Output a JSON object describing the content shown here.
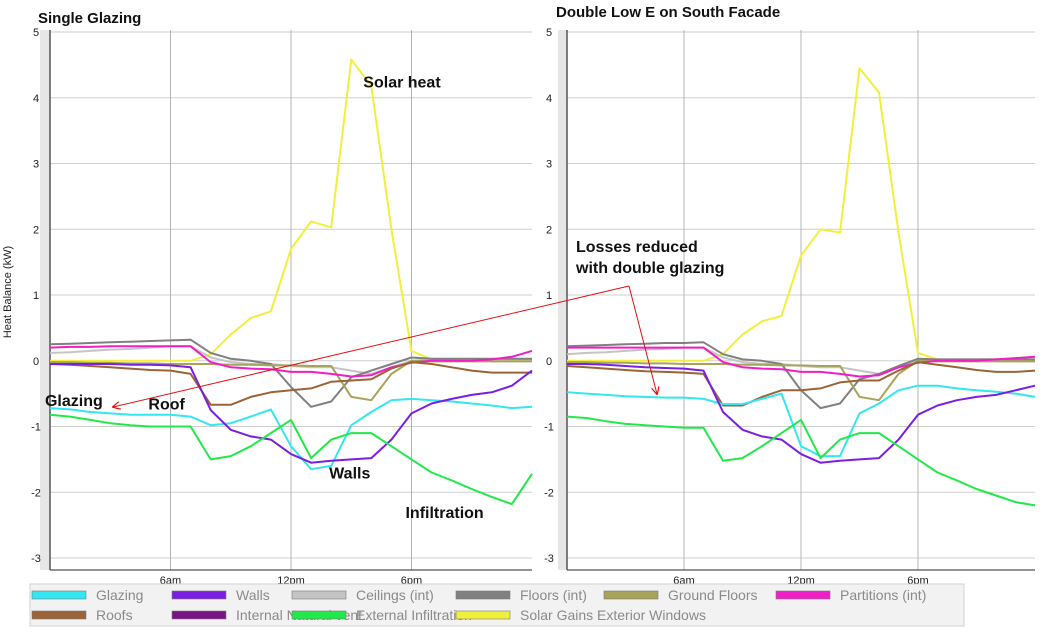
{
  "figure": {
    "ylabel": "Heat Balance (kW)",
    "callout": [
      "Losses reduced",
      "with double glazing"
    ]
  },
  "legend": [
    {
      "label": "Glazing",
      "color": "#33e6f0"
    },
    {
      "label": "Walls",
      "color": "#7a1fe0"
    },
    {
      "label": "Ceilings (int)",
      "color": "#c4c4c4"
    },
    {
      "label": "Floors (int)",
      "color": "#808080"
    },
    {
      "label": "Ground Floors",
      "color": "#a8a35a"
    },
    {
      "label": "Partitions (int)",
      "color": "#f01ec8"
    },
    {
      "label": "Roofs",
      "color": "#9a6438"
    },
    {
      "label": "Internal Natural vent.",
      "color": "#7a1486"
    },
    {
      "label": "External Infiltration",
      "color": "#22e84a"
    },
    {
      "label": "Solar Gains Exterior Windows",
      "color": "#f2ef3c"
    }
  ],
  "chart_data": [
    {
      "type": "line",
      "title": "Single Glazing",
      "ylabel": "Heat Balance (kW)",
      "ylim": [
        -3,
        5
      ],
      "yticks": [
        5,
        4,
        3,
        2,
        1,
        0,
        -1,
        -2,
        -3
      ],
      "xlim": [
        0,
        24
      ],
      "xticks": [
        {
          "value": 6,
          "label": "6am"
        },
        {
          "value": 12,
          "label": "12pm"
        },
        {
          "value": 18,
          "label": "6pm"
        }
      ],
      "x": [
        0,
        1,
        2,
        3,
        4,
        5,
        6,
        7,
        8,
        9,
        10,
        11,
        12,
        13,
        14,
        15,
        16,
        17,
        18,
        19,
        20,
        21,
        22,
        23,
        24
      ],
      "annotations": [
        {
          "text": "Solar heat",
          "x": 15.6,
          "y": 4.25
        },
        {
          "text": "Glazing",
          "x": -0.25,
          "y": -0.6
        },
        {
          "text": "Roof",
          "x": 4.9,
          "y": -0.65
        },
        {
          "text": "Walls",
          "x": 13.9,
          "y": -1.7
        },
        {
          "text": "Infiltration",
          "x": 17.7,
          "y": -2.3
        }
      ],
      "series": [
        {
          "name": "Solar Gains Exterior Windows",
          "values": [
            0.0,
            0.0,
            0.0,
            0.0,
            0.0,
            0.0,
            0.0,
            0.0,
            0.1,
            0.4,
            0.65,
            0.75,
            1.7,
            2.12,
            2.03,
            4.58,
            4.18,
            2.0,
            0.15,
            0.02,
            0.0,
            0.0,
            0.0,
            0.0,
            0.0
          ]
        },
        {
          "name": "Ceilings (int)",
          "values": [
            0.12,
            0.13,
            0.15,
            0.17,
            0.18,
            0.2,
            0.22,
            0.22,
            0.05,
            -0.02,
            -0.05,
            -0.05,
            -0.08,
            -0.1,
            -0.1,
            -0.15,
            -0.2,
            -0.1,
            0.0,
            0.02,
            0.02,
            0.02,
            0.02,
            0.02,
            0.02
          ]
        },
        {
          "name": "Floors (int)",
          "values": [
            0.25,
            0.26,
            0.27,
            0.28,
            0.29,
            0.3,
            0.31,
            0.32,
            0.12,
            0.03,
            0.0,
            -0.05,
            -0.4,
            -0.7,
            -0.62,
            -0.25,
            -0.15,
            -0.05,
            0.05,
            0.03,
            0.03,
            0.03,
            0.03,
            0.03,
            0.03
          ]
        },
        {
          "name": "Ground Floors",
          "values": [
            -0.02,
            -0.02,
            -0.03,
            -0.03,
            -0.04,
            -0.04,
            -0.05,
            -0.05,
            -0.05,
            -0.06,
            -0.06,
            -0.07,
            -0.07,
            -0.08,
            -0.08,
            -0.55,
            -0.6,
            -0.2,
            0.0,
            -0.01,
            -0.01,
            -0.01,
            -0.01,
            -0.01,
            -0.01
          ]
        },
        {
          "name": "Partitions (int)",
          "values": [
            0.2,
            0.21,
            0.21,
            0.22,
            0.22,
            0.22,
            0.22,
            0.22,
            -0.02,
            -0.1,
            -0.12,
            -0.13,
            -0.17,
            -0.17,
            -0.2,
            -0.24,
            -0.22,
            -0.1,
            -0.03,
            0.0,
            0.0,
            0.0,
            0.02,
            0.06,
            0.15
          ]
        },
        {
          "name": "Roofs",
          "values": [
            -0.05,
            -0.06,
            -0.08,
            -0.1,
            -0.12,
            -0.14,
            -0.15,
            -0.2,
            -0.67,
            -0.67,
            -0.55,
            -0.48,
            -0.45,
            -0.42,
            -0.32,
            -0.3,
            -0.28,
            -0.12,
            -0.02,
            -0.05,
            -0.1,
            -0.15,
            -0.18,
            -0.18,
            -0.18
          ]
        },
        {
          "name": "Glazing",
          "values": [
            -0.72,
            -0.74,
            -0.78,
            -0.8,
            -0.82,
            -0.82,
            -0.82,
            -0.85,
            -0.98,
            -0.95,
            -0.85,
            -0.74,
            -1.3,
            -1.65,
            -1.6,
            -0.98,
            -0.78,
            -0.6,
            -0.58,
            -0.6,
            -0.62,
            -0.65,
            -0.68,
            -0.72,
            -0.7
          ]
        },
        {
          "name": "Walls",
          "values": [
            -0.05,
            -0.05,
            -0.05,
            -0.05,
            -0.06,
            -0.06,
            -0.07,
            -0.1,
            -0.75,
            -1.05,
            -1.15,
            -1.2,
            -1.42,
            -1.55,
            -1.52,
            -1.5,
            -1.48,
            -1.2,
            -0.8,
            -0.65,
            -0.58,
            -0.52,
            -0.48,
            -0.38,
            -0.15
          ]
        },
        {
          "name": "External Infiltration",
          "values": [
            -0.82,
            -0.85,
            -0.9,
            -0.95,
            -0.98,
            -1.0,
            -1.0,
            -1.0,
            -1.5,
            -1.45,
            -1.3,
            -1.1,
            -0.9,
            -1.48,
            -1.2,
            -1.1,
            -1.1,
            -1.3,
            -1.5,
            -1.7,
            -1.82,
            -1.95,
            -2.07,
            -2.18,
            -1.72
          ]
        }
      ]
    },
    {
      "type": "line",
      "title": "Double Low E on South Facade",
      "ylabel": "",
      "ylim": [
        -3,
        5
      ],
      "yticks": [
        5,
        4,
        3,
        2,
        1,
        0,
        -1,
        -2,
        -3
      ],
      "xlim": [
        0,
        24
      ],
      "xticks": [
        {
          "value": 6,
          "label": "6am"
        },
        {
          "value": 12,
          "label": "12pm"
        },
        {
          "value": 18,
          "label": "6pm"
        }
      ],
      "x": [
        0,
        1,
        2,
        3,
        4,
        5,
        6,
        7,
        8,
        9,
        10,
        11,
        12,
        13,
        14,
        15,
        16,
        17,
        18,
        19,
        20,
        21,
        22,
        23,
        24
      ],
      "annotations": [],
      "series": [
        {
          "name": "Solar Gains Exterior Windows",
          "values": [
            0.0,
            0.0,
            0.0,
            0.0,
            0.0,
            0.0,
            0.0,
            0.0,
            0.1,
            0.4,
            0.6,
            0.68,
            1.6,
            2.0,
            1.95,
            4.45,
            4.08,
            1.95,
            0.12,
            0.02,
            0.0,
            0.0,
            0.0,
            0.0,
            0.0
          ]
        },
        {
          "name": "Ceilings (int)",
          "values": [
            0.1,
            0.12,
            0.13,
            0.15,
            0.17,
            0.18,
            0.2,
            0.2,
            0.05,
            -0.02,
            -0.05,
            -0.05,
            -0.08,
            -0.1,
            -0.1,
            -0.15,
            -0.2,
            -0.1,
            0.0,
            0.02,
            0.02,
            0.02,
            0.02,
            0.02,
            0.02
          ]
        },
        {
          "name": "Floors (int)",
          "values": [
            0.22,
            0.23,
            0.24,
            0.25,
            0.26,
            0.27,
            0.27,
            0.28,
            0.1,
            0.02,
            0.0,
            -0.05,
            -0.45,
            -0.72,
            -0.65,
            -0.28,
            -0.2,
            -0.08,
            0.03,
            0.02,
            0.02,
            0.02,
            0.02,
            0.02,
            0.02
          ]
        },
        {
          "name": "Ground Floors",
          "values": [
            -0.02,
            -0.02,
            -0.03,
            -0.03,
            -0.04,
            -0.04,
            -0.05,
            -0.05,
            -0.05,
            -0.06,
            -0.06,
            -0.07,
            -0.07,
            -0.08,
            -0.08,
            -0.55,
            -0.6,
            -0.2,
            0.0,
            -0.01,
            -0.01,
            -0.01,
            -0.01,
            -0.01,
            -0.01
          ]
        },
        {
          "name": "Partitions (int)",
          "values": [
            0.2,
            0.2,
            0.2,
            0.2,
            0.2,
            0.2,
            0.2,
            0.2,
            -0.02,
            -0.1,
            -0.12,
            -0.13,
            -0.17,
            -0.17,
            -0.2,
            -0.24,
            -0.22,
            -0.1,
            -0.03,
            0.0,
            0.0,
            0.0,
            0.02,
            0.04,
            0.06
          ]
        },
        {
          "name": "Roofs",
          "values": [
            -0.08,
            -0.1,
            -0.12,
            -0.14,
            -0.16,
            -0.17,
            -0.18,
            -0.2,
            -0.68,
            -0.68,
            -0.55,
            -0.45,
            -0.45,
            -0.42,
            -0.33,
            -0.3,
            -0.3,
            -0.15,
            -0.02,
            -0.06,
            -0.1,
            -0.14,
            -0.17,
            -0.17,
            -0.15
          ]
        },
        {
          "name": "Glazing",
          "values": [
            -0.48,
            -0.5,
            -0.52,
            -0.54,
            -0.55,
            -0.56,
            -0.56,
            -0.58,
            -0.66,
            -0.66,
            -0.58,
            -0.5,
            -1.3,
            -1.45,
            -1.45,
            -0.8,
            -0.65,
            -0.45,
            -0.38,
            -0.38,
            -0.42,
            -0.45,
            -0.47,
            -0.5,
            -0.55
          ]
        },
        {
          "name": "Walls",
          "values": [
            -0.05,
            -0.05,
            -0.06,
            -0.08,
            -0.1,
            -0.11,
            -0.12,
            -0.15,
            -0.78,
            -1.05,
            -1.15,
            -1.2,
            -1.42,
            -1.55,
            -1.52,
            -1.5,
            -1.48,
            -1.2,
            -0.82,
            -0.68,
            -0.6,
            -0.55,
            -0.52,
            -0.45,
            -0.38
          ]
        },
        {
          "name": "External Infiltration",
          "values": [
            -0.85,
            -0.87,
            -0.92,
            -0.96,
            -0.98,
            -1.0,
            -1.02,
            -1.02,
            -1.52,
            -1.48,
            -1.3,
            -1.1,
            -0.9,
            -1.48,
            -1.2,
            -1.1,
            -1.1,
            -1.3,
            -1.5,
            -1.7,
            -1.82,
            -1.95,
            -2.05,
            -2.15,
            -2.2
          ]
        }
      ]
    }
  ]
}
